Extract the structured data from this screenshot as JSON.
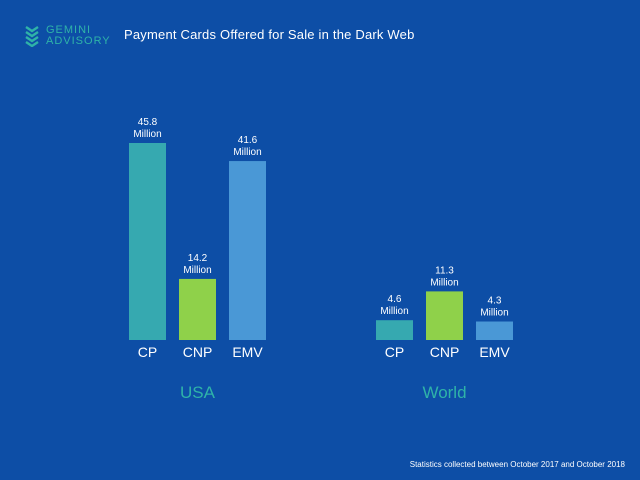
{
  "brand": {
    "line1": "GEMINI",
    "line2": "ADVISORY",
    "accent": "#2fb3a8"
  },
  "background": "#0d4ea6",
  "footnote": "Statistics collected between October 2017 and October 2018",
  "chart_data": {
    "type": "bar",
    "title": "Payment Cards Offered for Sale in the Dark Web",
    "unit": "Million",
    "categories": [
      "CP",
      "CNP",
      "EMV"
    ],
    "groups": [
      {
        "name": "USA",
        "values": [
          45.8,
          14.2,
          41.6
        ]
      },
      {
        "name": "World",
        "values": [
          4.6,
          11.3,
          4.3
        ]
      }
    ],
    "colors": {
      "CP": "#36a9b0",
      "CNP": "#8fd14a",
      "EMV": "#4a98d6"
    },
    "label_color": "#ffffff",
    "group_label_color": "#2fb3a8",
    "grid": false,
    "legend": "none"
  }
}
